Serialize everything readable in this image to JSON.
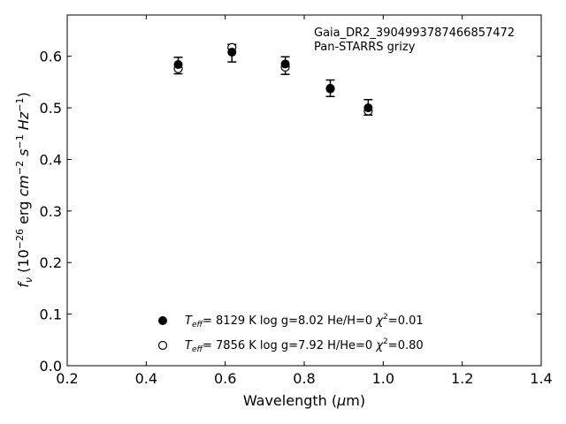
{
  "chart_data": {
    "type": "scatter",
    "annotation": {
      "line1": "Gaia_DR2_3904993787466857472",
      "line2": "Pan-STARRS grizy"
    },
    "xlabel": "Wavelength (μm)",
    "ylabel": "f_ν (10^-26 erg cm^-2 s^-1 Hz^-1)",
    "xlim": [
      0.2,
      1.4
    ],
    "ylim": [
      0.0,
      0.68
    ],
    "xticks": [
      "0.2",
      "0.4",
      "0.6",
      "0.8",
      "1.0",
      "1.2",
      "1.4"
    ],
    "yticks": [
      "0.0",
      "0.1",
      "0.2",
      "0.3",
      "0.4",
      "0.5",
      "0.6"
    ],
    "grid": false,
    "legend_placement": "lower-center",
    "observed": {
      "x": [
        0.481,
        0.617,
        0.752,
        0.866,
        0.962
      ],
      "y": [
        0.582,
        0.606,
        0.582,
        0.538,
        0.501
      ],
      "yerr": [
        0.016,
        0.017,
        0.017,
        0.016,
        0.015
      ]
    },
    "series": [
      {
        "name": "T_eff= 8129 K  log g=8.02  He/H=0  χ2=0.01",
        "marker": "filled-circle",
        "x": [
          0.481,
          0.617,
          0.752,
          0.866,
          0.962
        ],
        "y": [
          0.584,
          0.608,
          0.585,
          0.538,
          0.5
        ]
      },
      {
        "name": "T_eff= 7856 K  log g=7.92  H/He=0  χ2=0.80",
        "marker": "open-circle",
        "x": [
          0.481,
          0.617,
          0.752,
          0.866,
          0.962
        ],
        "y": [
          0.576,
          0.617,
          0.579,
          0.537,
          0.494
        ]
      }
    ],
    "legend": [
      {
        "teff": "8129",
        "logg": "8.02",
        "comp": "He/H=0",
        "chi2": "0.01"
      },
      {
        "teff": "7856",
        "logg": "7.92",
        "comp": "H/He=0",
        "chi2": "0.80"
      }
    ]
  }
}
